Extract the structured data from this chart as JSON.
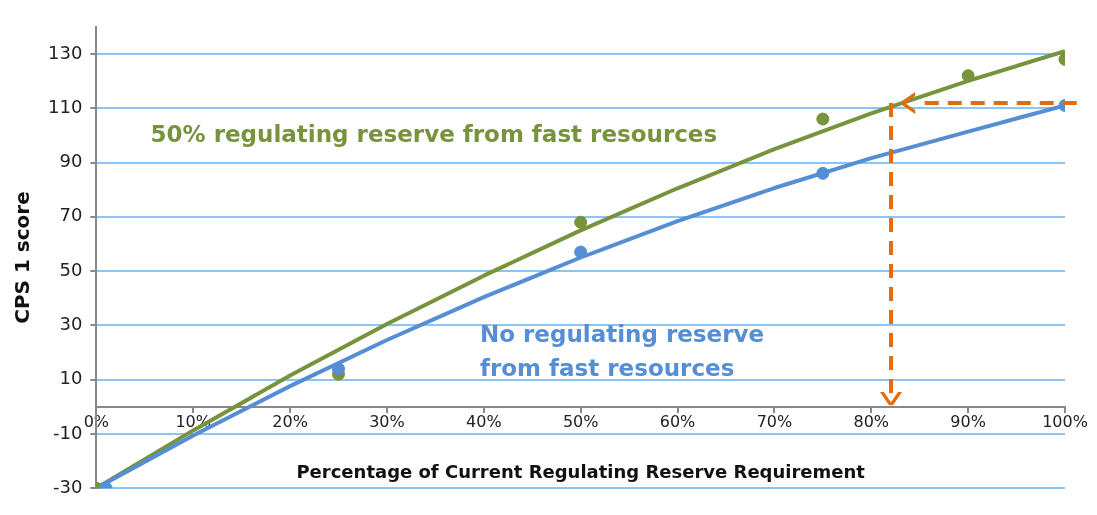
{
  "chart_data": {
    "type": "scatter",
    "xlabel": "Percentage of Current Regulating Reserve Requirement",
    "ylabel": "CPS 1 score",
    "xlim": [
      0,
      100
    ],
    "ylim": [
      -30,
      140
    ],
    "xticks": [
      {
        "value": 0,
        "label": "0%"
      },
      {
        "value": 10,
        "label": "10%"
      },
      {
        "value": 20,
        "label": "20%"
      },
      {
        "value": 30,
        "label": "30%"
      },
      {
        "value": 40,
        "label": "40%"
      },
      {
        "value": 50,
        "label": "50%"
      },
      {
        "value": 60,
        "label": "60%"
      },
      {
        "value": 70,
        "label": "70%"
      },
      {
        "value": 80,
        "label": "80%"
      },
      {
        "value": 90,
        "label": "90%"
      },
      {
        "value": 100,
        "label": "100%"
      }
    ],
    "yticks": [
      -30,
      -10,
      10,
      30,
      50,
      70,
      90,
      110,
      130
    ],
    "grid": "y",
    "legend": false,
    "series": [
      {
        "type": "line",
        "color": "#77933c",
        "marker": "none",
        "x": [
          0,
          10,
          20,
          30,
          40,
          50,
          60,
          70,
          80,
          90,
          100
        ],
        "values": [
          -30,
          -8.7,
          11.5,
          30.5,
          48.3,
          65,
          80.5,
          94.9,
          108.1,
          120.1,
          131
        ]
      },
      {
        "type": "line",
        "color": "#558ed5",
        "marker": "none",
        "x": [
          0,
          10,
          20,
          30,
          40,
          50,
          60,
          70,
          80,
          90,
          100
        ],
        "values": [
          -30,
          -10.6,
          7.6,
          24.6,
          40.4,
          55,
          68.4,
          80.6,
          91.6,
          101.4,
          111
        ]
      },
      {
        "name": "50% regulating reserve from fast resources",
        "color": "#77933c",
        "marker": "circle",
        "x": [
          0,
          25,
          50,
          75,
          90,
          100
        ],
        "values": [
          -30,
          12,
          68,
          106,
          122,
          128
        ]
      },
      {
        "name": "No regulating reserve from fast resources",
        "color": "#558ed5",
        "marker": "circle",
        "x": [
          1,
          25,
          50,
          75,
          100
        ],
        "values": [
          -30,
          14,
          57,
          86,
          111
        ]
      }
    ]
  }
}
